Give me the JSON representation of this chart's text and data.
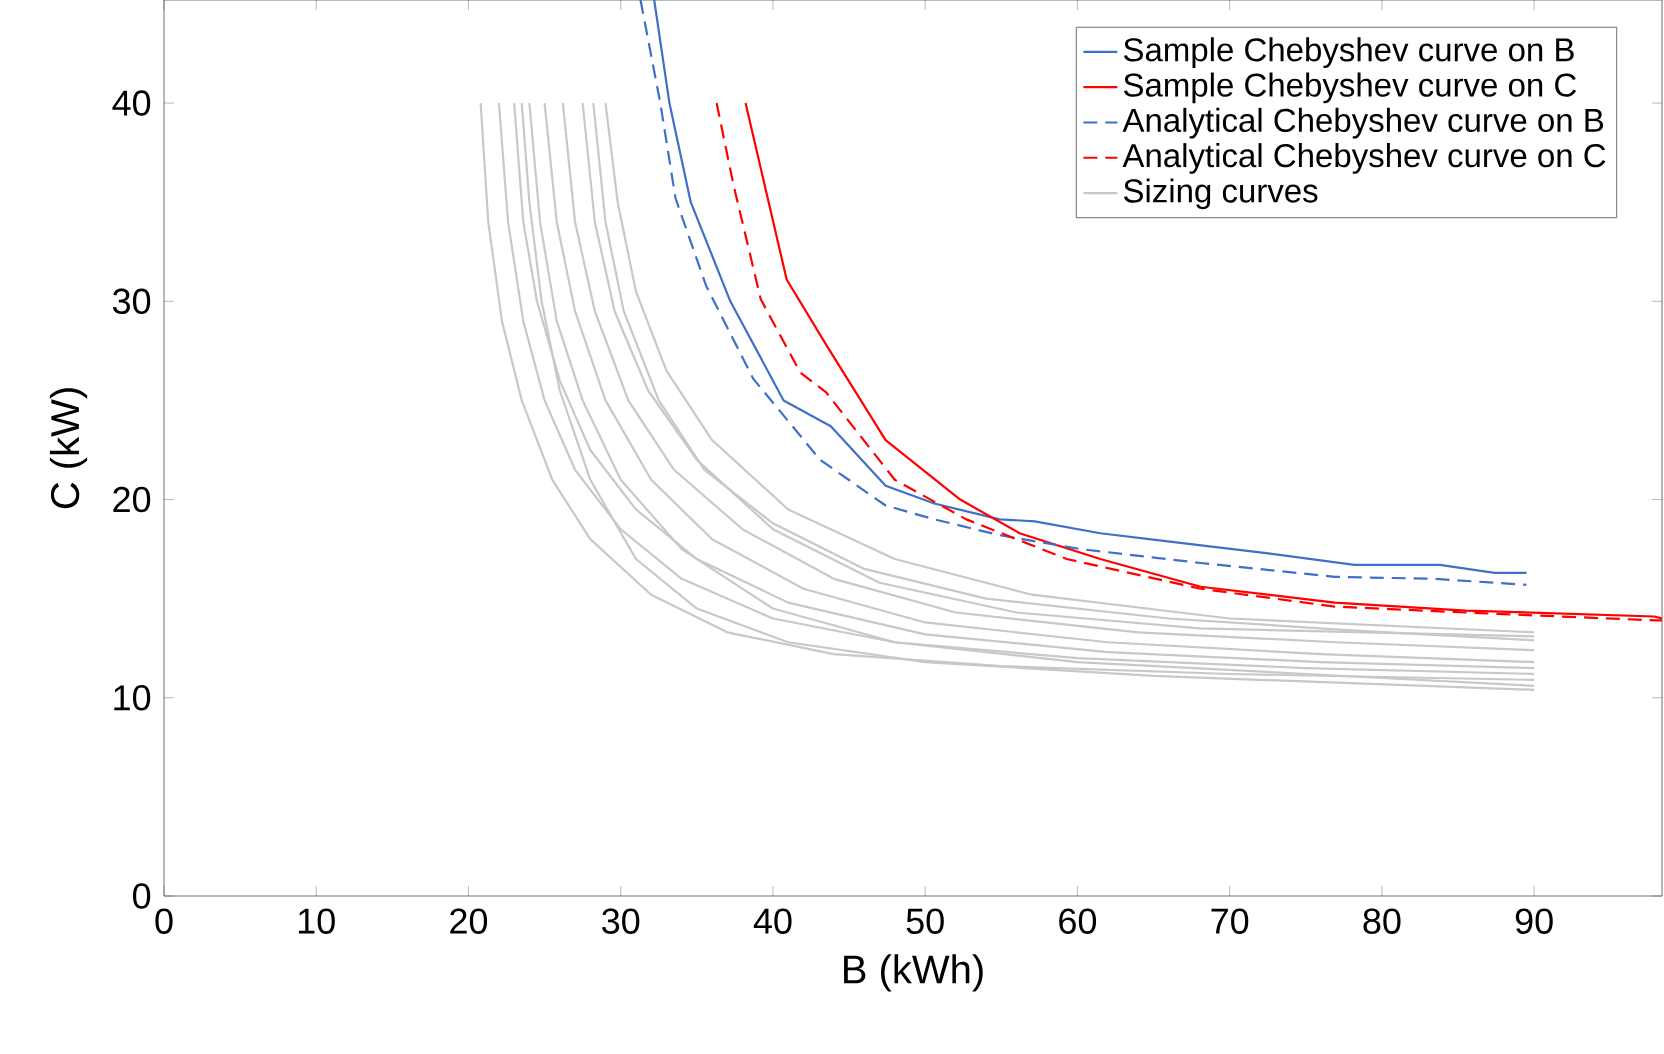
{
  "chart_data": {
    "type": "line",
    "xlabel": "B (kWh)",
    "ylabel": "C (kW)",
    "xlim": [
      0,
      98.4
    ],
    "ylim": [
      0,
      45.2
    ],
    "xticks": [
      0,
      10,
      20,
      30,
      40,
      50,
      60,
      70,
      80,
      90
    ],
    "yticks": [
      0,
      10,
      20,
      30,
      40
    ],
    "legend": "top right",
    "series": [
      {
        "color": "#c8c8c8",
        "x": [
          20.8,
          21.3,
          22.2,
          23.5,
          25.5,
          28,
          32,
          37,
          44,
          55,
          70,
          90
        ],
        "values": [
          40,
          34,
          29,
          25,
          21,
          18,
          15.2,
          13.3,
          12.2,
          11.6,
          11.2,
          10.9
        ]
      },
      {
        "color": "#c8c8c8",
        "x": [
          22,
          22.6,
          23.6,
          25,
          27,
          30,
          34,
          40,
          48,
          60,
          75,
          90
        ],
        "values": [
          40,
          34,
          29,
          25,
          21.5,
          18.5,
          16,
          14,
          12.8,
          12,
          11.5,
          11.2
        ]
      },
      {
        "color": "#c8c8c8",
        "x": [
          23,
          23.6,
          24.5,
          26,
          28,
          31,
          35,
          41,
          50,
          62,
          76,
          90
        ],
        "values": [
          40,
          34,
          30,
          26,
          22.5,
          19.5,
          17,
          14.8,
          13.2,
          12.3,
          11.8,
          11.5
        ]
      },
      {
        "color": "#c8c8c8",
        "x": [
          24,
          24.7,
          25.8,
          27.5,
          30,
          34,
          40,
          48,
          60,
          75,
          90
        ],
        "values": [
          40,
          34,
          29,
          25,
          21,
          17.5,
          14.5,
          12.8,
          11.8,
          11.2,
          10.6
        ]
      },
      {
        "color": "#c8c8c8",
        "x": [
          25,
          25.8,
          27,
          29,
          32,
          36,
          42,
          50,
          62,
          76,
          90
        ],
        "values": [
          40,
          34,
          29.5,
          25,
          21,
          18,
          15.5,
          13.8,
          12.8,
          12.2,
          11.8
        ]
      },
      {
        "color": "#c8c8c8",
        "x": [
          26.2,
          27,
          28.3,
          30.5,
          33.5,
          38,
          44,
          52,
          64,
          77,
          90
        ],
        "values": [
          40,
          34,
          29.5,
          25,
          21.5,
          18.5,
          16,
          14.3,
          13.3,
          12.8,
          12.4
        ]
      },
      {
        "color": "#c8c8c8",
        "x": [
          27.5,
          28.3,
          29.6,
          31.8,
          35,
          40,
          47,
          56,
          68,
          90
        ],
        "values": [
          40,
          34,
          29.5,
          25.5,
          22,
          18.5,
          15.8,
          14.3,
          13.5,
          13.1
        ]
      },
      {
        "color": "#c8c8c8",
        "x": [
          29,
          29.8,
          31,
          33,
          36,
          41,
          48,
          57,
          70,
          90
        ],
        "values": [
          40,
          35,
          30.5,
          26.5,
          23,
          19.5,
          17,
          15.2,
          14,
          13.3
        ]
      },
      {
        "color": "#c8c8c8",
        "x": [
          23.5,
          24,
          24.8,
          26,
          28,
          31,
          35,
          41,
          50,
          65,
          90
        ],
        "values": [
          40,
          35,
          30,
          25.5,
          21,
          17,
          14.5,
          12.8,
          11.8,
          11.1,
          10.4
        ]
      },
      {
        "name": "Sample Chebyshev curve on B",
        "color": "#3f6fc9",
        "line_style": "solid",
        "x": [
          32.2,
          33.2,
          34.6,
          37.2,
          40.7,
          43.8,
          47.4,
          50.6,
          54.9,
          57.2,
          61.5,
          65.8,
          72.4,
          78.2,
          83.8,
          87.4,
          89.5
        ],
        "values": [
          45.2,
          40,
          35,
          30,
          25,
          23.7,
          20.7,
          19.8,
          19,
          18.9,
          18.3,
          17.9,
          17.3,
          16.7,
          16.7,
          16.3,
          16.3
        ]
      },
      {
        "name": "Sample Chebyshev curve on C",
        "color": "#ff0000",
        "line_style": "solid",
        "x": [
          38.2,
          40.9,
          43.5,
          47.4,
          52.3,
          56.2,
          61.5,
          68.1,
          76.9,
          85.5,
          97.9,
          98.4
        ],
        "values": [
          40,
          31.1,
          27.8,
          23,
          20,
          18.3,
          17,
          15.6,
          14.8,
          14.4,
          14.1,
          14.0
        ]
      },
      {
        "name": "Analytical Chebyshev curve on B",
        "color": "#3f6fc9",
        "line_style": "dashed",
        "x": [
          31.3,
          32.6,
          33.6,
          35.6,
          38.7,
          43.1,
          47.4,
          50.6,
          54.9,
          60.2,
          68.1,
          76.9,
          83.4,
          89.5
        ],
        "values": [
          45.2,
          40,
          35.2,
          30.8,
          26.1,
          22,
          19.7,
          19,
          18.2,
          17.5,
          16.8,
          16.1,
          16,
          15.7
        ]
      },
      {
        "name": "Analytical Chebyshev curve on C",
        "color": "#ff0000",
        "line_style": "dashed",
        "x": [
          36.3,
          37.4,
          39.2,
          41.8,
          43.5,
          48,
          52.7,
          59.3,
          68.1,
          76.9,
          85.5,
          98,
          98.4
        ],
        "values": [
          40,
          35.9,
          30.1,
          26.4,
          25.4,
          21,
          19,
          17,
          15.5,
          14.6,
          14.3,
          13.9,
          13.9
        ]
      },
      {
        "name": "Sizing curves",
        "color": "#c8c8c8",
        "x": [
          28.2,
          29,
          30.2,
          32.5,
          35.5,
          40,
          46,
          54,
          66,
          78,
          90
        ],
        "values": [
          40,
          34,
          29.5,
          25,
          21.5,
          18.8,
          16.5,
          15,
          14,
          13.4,
          12.9
        ]
      }
    ]
  }
}
